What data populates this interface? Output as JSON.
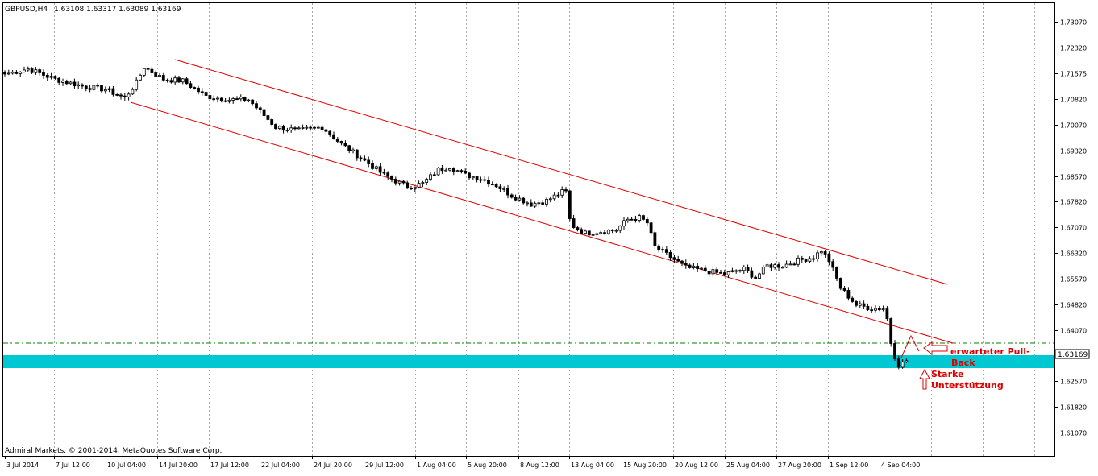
{
  "header": {
    "symbol": "GBPUSD,H4",
    "ohlc": "1.63108 1.63317 1.63089 1.63169"
  },
  "copyright": "Admiral Markets, © 2001-2014, MetaQuotes Software Corp.",
  "price_marker": "1.63169",
  "annotations": {
    "pullback_line1": "erwarteter Pull-",
    "pullback_line2": "Back",
    "support_line1": "Starke",
    "support_line2": "Unterstützung"
  },
  "colors": {
    "bull_candle": "#ffffff",
    "bear_candle": "#000000",
    "channel": "#dd0000",
    "support_zone": "#00c8d2",
    "dashed_line": "#008000",
    "grid": "#a8a8a8",
    "annotation": "#dd0000"
  },
  "chart_data": {
    "type": "candlestick",
    "title": "GBPUSD,H4",
    "y_ticks": [
      1.7307,
      1.7232,
      1.71575,
      1.7082,
      1.7007,
      1.6932,
      1.6857,
      1.6782,
      1.6707,
      1.6632,
      1.6557,
      1.6482,
      1.6407,
      1.6332,
      1.6257,
      1.6182,
      1.6107
    ],
    "ylim": [
      1.6039,
      1.7362
    ],
    "x_labels": [
      "3 Jul 2014",
      "7 Jul 12:00",
      "10 Jul 04:00",
      "14 Jul 20:00",
      "17 Jul 12:00",
      "22 Jul 04:00",
      "24 Jul 20:00",
      "29 Jul 12:00",
      "1 Aug 04:00",
      "5 Aug 20:00",
      "8 Aug 12:00",
      "13 Aug 04:00",
      "15 Aug 20:00",
      "20 Aug 12:00",
      "25 Aug 04:00",
      "27 Aug 20:00",
      "1 Sep 12:00",
      "4 Sep 04:00"
    ],
    "anchors": [
      [
        0,
        1.7155
      ],
      [
        6,
        1.717
      ],
      [
        13,
        1.714
      ],
      [
        20,
        1.712
      ],
      [
        26,
        1.711
      ],
      [
        31,
        1.7085
      ],
      [
        34,
        1.713
      ],
      [
        36,
        1.7175
      ],
      [
        41,
        1.714
      ],
      [
        46,
        1.7135
      ],
      [
        52,
        1.709
      ],
      [
        58,
        1.708
      ],
      [
        63,
        1.708
      ],
      [
        70,
        1.7
      ],
      [
        76,
        1.699
      ],
      [
        82,
        1.7
      ],
      [
        87,
        1.695
      ],
      [
        92,
        1.691
      ],
      [
        98,
        1.686
      ],
      [
        104,
        1.6825
      ],
      [
        108,
        1.6835
      ],
      [
        112,
        1.6875
      ],
      [
        115,
        1.6885
      ],
      [
        119,
        1.686
      ],
      [
        123,
        1.685
      ],
      [
        127,
        1.683
      ],
      [
        131,
        1.68
      ],
      [
        136,
        1.6775
      ],
      [
        140,
        1.6785
      ],
      [
        144,
        1.681
      ],
      [
        145,
        1.681
      ],
      [
        146,
        1.673
      ],
      [
        147,
        1.671
      ],
      [
        150,
        1.669
      ],
      [
        154,
        1.6695
      ],
      [
        158,
        1.67
      ],
      [
        161,
        1.673
      ],
      [
        164,
        1.6735
      ],
      [
        166,
        1.672
      ],
      [
        168,
        1.665
      ],
      [
        172,
        1.662
      ],
      [
        176,
        1.659
      ],
      [
        181,
        1.658
      ],
      [
        186,
        1.657
      ],
      [
        191,
        1.6585
      ],
      [
        194,
        1.656
      ],
      [
        197,
        1.6595
      ],
      [
        201,
        1.6595
      ],
      [
        205,
        1.661
      ],
      [
        209,
        1.662
      ],
      [
        211,
        1.664
      ],
      [
        213,
        1.661
      ],
      [
        216,
        1.653
      ],
      [
        220,
        1.648
      ],
      [
        224,
        1.647
      ],
      [
        227,
        1.647
      ],
      [
        228,
        1.644
      ],
      [
        229,
        1.637
      ],
      [
        230,
        1.633
      ],
      [
        231,
        1.6305
      ],
      [
        232,
        1.631
      ],
      [
        233,
        1.6317
      ]
    ]
  }
}
